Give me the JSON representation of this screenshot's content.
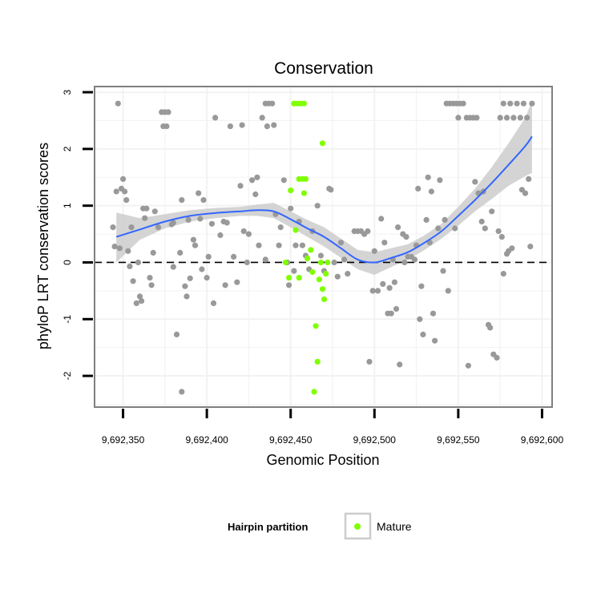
{
  "chart_data": {
    "type": "scatter",
    "title": "Conservation",
    "xlabel": "Genomic Position",
    "ylabel": "phyloP LRT conservation scores",
    "xlim": [
      9692333,
      9692606
    ],
    "ylim": [
      -2.55,
      3.1
    ],
    "x_ticks": [
      9692350,
      9692400,
      9692450,
      9692500,
      9692550,
      9692600
    ],
    "x_tick_labels": [
      "9,692,350",
      "9,692,400",
      "9,692,450",
      "9,692,500",
      "9,692,550",
      "9,692,600"
    ],
    "y_ticks": [
      -2,
      -1,
      0,
      1,
      2,
      3
    ],
    "y_tick_labels": [
      "-2",
      "-1",
      "0",
      "1",
      "2",
      "3"
    ],
    "reference_line": {
      "y": 0,
      "style": "dashed",
      "color": "#000000"
    },
    "grid": true,
    "colors": {
      "other": "#999999",
      "mature": "#80ff00",
      "smooth_line": "#3366ff",
      "ribbon": "#cccccc",
      "panel_border": "#7f7f7f",
      "gridline": "#f2f2f2"
    },
    "legend": {
      "title": "Hairpin partition",
      "entries": [
        {
          "label": "Mature",
          "color": "#80ff00"
        }
      ],
      "position": "bottom"
    },
    "series": [
      {
        "name": "other",
        "color": "#999999",
        "points": [
          [
            9692346,
            1.25
          ],
          [
            9692347,
            2.8
          ],
          [
            9692349,
            1.3
          ],
          [
            9692350,
            1.47
          ],
          [
            9692351,
            1.25
          ],
          [
            9692352,
            1.1
          ],
          [
            9692344,
            0.62
          ],
          [
            9692345,
            0.28
          ],
          [
            9692348,
            0.25
          ],
          [
            9692353,
            0.2
          ],
          [
            9692354,
            -0.07
          ],
          [
            9692355,
            0.62
          ],
          [
            9692356,
            -0.33
          ],
          [
            9692358,
            -0.72
          ],
          [
            9692359,
            0.0
          ],
          [
            9692360,
            -0.6
          ],
          [
            9692361,
            -0.68
          ],
          [
            9692362,
            0.95
          ],
          [
            9692363,
            0.78
          ],
          [
            9692364,
            0.95
          ],
          [
            9692366,
            -0.27
          ],
          [
            9692367,
            -0.4
          ],
          [
            9692368,
            0.17
          ],
          [
            9692369,
            0.9
          ],
          [
            9692371,
            0.62
          ],
          [
            9692373,
            2.65
          ],
          [
            9692375,
            2.65
          ],
          [
            9692377,
            2.65
          ],
          [
            9692374,
            2.4
          ],
          [
            9692376,
            2.4
          ],
          [
            9692379,
            0.67
          ],
          [
            9692380,
            0.7
          ],
          [
            9692382,
            -1.27
          ],
          [
            9692384,
            0.17
          ],
          [
            9692385,
            -2.28
          ],
          [
            9692387,
            -0.42
          ],
          [
            9692388,
            -0.6
          ],
          [
            9692389,
            0.75
          ],
          [
            9692390,
            -0.28
          ],
          [
            9692392,
            0.4
          ],
          [
            9692393,
            0.3
          ],
          [
            9692395,
            1.22
          ],
          [
            9692396,
            0.77
          ],
          [
            9692397,
            -0.12
          ],
          [
            9692398,
            1.1
          ],
          [
            9692400,
            -0.27
          ],
          [
            9692401,
            0.1
          ],
          [
            9692403,
            0.68
          ],
          [
            9692404,
            -0.72
          ],
          [
            9692405,
            2.55
          ],
          [
            9692408,
            0.48
          ],
          [
            9692410,
            0.72
          ],
          [
            9692411,
            -0.4
          ],
          [
            9692412,
            0.7
          ],
          [
            9692414,
            2.4
          ],
          [
            9692416,
            0.1
          ],
          [
            9692418,
            -0.35
          ],
          [
            9692420,
            1.35
          ],
          [
            9692421,
            2.42
          ],
          [
            9692422,
            0.55
          ],
          [
            9692424,
            0.0
          ],
          [
            9692425,
            0.5
          ],
          [
            9692427,
            1.45
          ],
          [
            9692429,
            1.2
          ],
          [
            9692430,
            1.5
          ],
          [
            9692431,
            0.3
          ],
          [
            9692433,
            2.55
          ],
          [
            9692435,
            2.8
          ],
          [
            9692437,
            2.8
          ],
          [
            9692439,
            2.8
          ],
          [
            9692436,
            2.4
          ],
          [
            9692440,
            2.42
          ],
          [
            9692443,
            0.3
          ],
          [
            9692444,
            0.62
          ],
          [
            9692446,
            1.45
          ],
          [
            9692448,
            0.0
          ],
          [
            9692449,
            -0.4
          ],
          [
            9692450,
            0.95
          ],
          [
            9692452,
            -0.15
          ],
          [
            9692453,
            0.3
          ],
          [
            9692455,
            0.72
          ],
          [
            9692457,
            0.3
          ],
          [
            9692459,
            0.12
          ],
          [
            9692461,
            -0.12
          ],
          [
            9692463,
            0.55
          ],
          [
            9692466,
            1.0
          ],
          [
            9692468,
            0.12
          ],
          [
            9692470,
            -0.15
          ],
          [
            9692473,
            1.3
          ],
          [
            9692474,
            1.28
          ],
          [
            9692476,
            0.0
          ],
          [
            9692478,
            -0.25
          ],
          [
            9692480,
            0.35
          ],
          [
            9692482,
            0.05
          ],
          [
            9692484,
            -0.2
          ],
          [
            9692488,
            0.55
          ],
          [
            9692490,
            0.55
          ],
          [
            9692492,
            0.55
          ],
          [
            9692494,
            0.5
          ],
          [
            9692496,
            0.55
          ],
          [
            9692497,
            -1.75
          ],
          [
            9692499,
            -0.5
          ],
          [
            9692500,
            0.2
          ],
          [
            9692502,
            -0.5
          ],
          [
            9692504,
            0.77
          ],
          [
            9692505,
            -0.38
          ],
          [
            9692506,
            0.35
          ],
          [
            9692508,
            -0.9
          ],
          [
            9692509,
            -0.45
          ],
          [
            9692510,
            -0.9
          ],
          [
            9692511,
            0.05
          ],
          [
            9692512,
            -0.35
          ],
          [
            9692514,
            0.62
          ],
          [
            9692515,
            -1.8
          ],
          [
            9692517,
            0.5
          ],
          [
            9692518,
            0.0
          ],
          [
            9692520,
            0.1
          ],
          [
            9692522,
            0.1
          ],
          [
            9692524,
            0.05
          ],
          [
            9692526,
            1.3
          ],
          [
            9692527,
            -1.0
          ],
          [
            9692528,
            -0.42
          ],
          [
            9692529,
            -1.27
          ],
          [
            9692531,
            0.75
          ],
          [
            9692532,
            1.5
          ],
          [
            9692534,
            1.25
          ],
          [
            9692535,
            -0.9
          ],
          [
            9692536,
            -1.38
          ],
          [
            9692538,
            0.6
          ],
          [
            9692539,
            1.45
          ],
          [
            9692541,
            -0.15
          ],
          [
            9692542,
            0.75
          ],
          [
            9692543,
            2.8
          ],
          [
            9692545,
            2.8
          ],
          [
            9692547,
            2.8
          ],
          [
            9692549,
            2.8
          ],
          [
            9692551,
            2.8
          ],
          [
            9692553,
            2.8
          ],
          [
            9692550,
            2.55
          ],
          [
            9692555,
            2.55
          ],
          [
            9692557,
            2.55
          ],
          [
            9692559,
            2.55
          ],
          [
            9692561,
            2.55
          ],
          [
            9692556,
            -1.82
          ],
          [
            9692560,
            1.42
          ],
          [
            9692562,
            1.22
          ],
          [
            9692564,
            0.72
          ],
          [
            9692566,
            0.6
          ],
          [
            9692570,
            0.9
          ],
          [
            9692568,
            -1.1
          ],
          [
            9692569,
            -1.15
          ],
          [
            9692571,
            -1.62
          ],
          [
            9692573,
            -1.68
          ],
          [
            9692574,
            0.55
          ],
          [
            9692576,
            0.45
          ],
          [
            9692577,
            -0.2
          ],
          [
            9692579,
            0.15
          ],
          [
            9692580,
            0.2
          ],
          [
            9692582,
            0.25
          ],
          [
            9692575,
            2.55
          ],
          [
            9692577,
            2.8
          ],
          [
            9692579,
            2.55
          ],
          [
            9692581,
            2.8
          ],
          [
            9692583,
            2.55
          ],
          [
            9692585,
            2.8
          ],
          [
            9692587,
            2.55
          ],
          [
            9692589,
            2.8
          ],
          [
            9692591,
            2.55
          ],
          [
            9692588,
            1.28
          ],
          [
            9692590,
            1.22
          ],
          [
            9692592,
            1.47
          ],
          [
            9692594,
            2.8
          ],
          [
            9692593,
            0.28
          ],
          [
            9692565,
            1.25
          ],
          [
            9692544,
            -0.5
          ],
          [
            9692548,
            0.6
          ],
          [
            9692533,
            0.35
          ],
          [
            9692385,
            1.1
          ],
          [
            9692380,
            -0.08
          ],
          [
            9692435,
            0.05
          ],
          [
            9692441,
            0.85
          ],
          [
            9692525,
            0.3
          ],
          [
            9692519,
            0.45
          ],
          [
            9692513,
            -0.82
          ]
        ]
      },
      {
        "name": "Mature",
        "color": "#80ff00",
        "points": [
          [
            9692452,
            2.8
          ],
          [
            9692454,
            2.8
          ],
          [
            9692456,
            2.8
          ],
          [
            9692458,
            2.8
          ],
          [
            9692469,
            2.1
          ],
          [
            9692455,
            1.47
          ],
          [
            9692457,
            1.47
          ],
          [
            9692459,
            1.47
          ],
          [
            9692450,
            1.27
          ],
          [
            9692458,
            1.22
          ],
          [
            9692453,
            0.57
          ],
          [
            9692462,
            0.22
          ],
          [
            9692447,
            0.0
          ],
          [
            9692460,
            0.07
          ],
          [
            9692468,
            0.0
          ],
          [
            9692472,
            0.0
          ],
          [
            9692449,
            -0.27
          ],
          [
            9692455,
            -0.27
          ],
          [
            9692463,
            -0.17
          ],
          [
            9692467,
            -0.3
          ],
          [
            9692471,
            -0.2
          ],
          [
            9692469,
            -0.47
          ],
          [
            9692470,
            -0.65
          ],
          [
            9692465,
            -1.12
          ],
          [
            9692466,
            -1.75
          ],
          [
            9692464,
            -2.28
          ]
        ]
      }
    ],
    "smooth_fit": {
      "name": "loess",
      "x": [
        9692346,
        9692360,
        9692375,
        9692390,
        9692405,
        9692420,
        9692430,
        9692440,
        9692450,
        9692460,
        9692470,
        9692480,
        9692490,
        9692500,
        9692510,
        9692520,
        9692530,
        9692540,
        9692550,
        9692560,
        9692570,
        9692580,
        9692590,
        9692594
      ],
      "y": [
        0.45,
        0.58,
        0.72,
        0.82,
        0.87,
        0.9,
        0.92,
        0.9,
        0.76,
        0.6,
        0.45,
        0.25,
        0.05,
        0.0,
        0.08,
        0.18,
        0.35,
        0.55,
        0.82,
        1.1,
        1.4,
        1.72,
        2.05,
        2.22
      ],
      "lower": [
        0.0,
        0.4,
        0.6,
        0.72,
        0.78,
        0.82,
        0.82,
        0.78,
        0.62,
        0.45,
        0.28,
        0.08,
        -0.12,
        -0.22,
        -0.08,
        0.05,
        0.22,
        0.42,
        0.65,
        0.9,
        1.12,
        1.35,
        1.52,
        1.58
      ],
      "upper": [
        0.88,
        0.78,
        0.85,
        0.92,
        0.96,
        0.98,
        1.02,
        1.05,
        0.9,
        0.75,
        0.62,
        0.42,
        0.22,
        0.18,
        0.25,
        0.32,
        0.48,
        0.68,
        0.98,
        1.3,
        1.68,
        2.1,
        2.55,
        2.85
      ]
    }
  }
}
